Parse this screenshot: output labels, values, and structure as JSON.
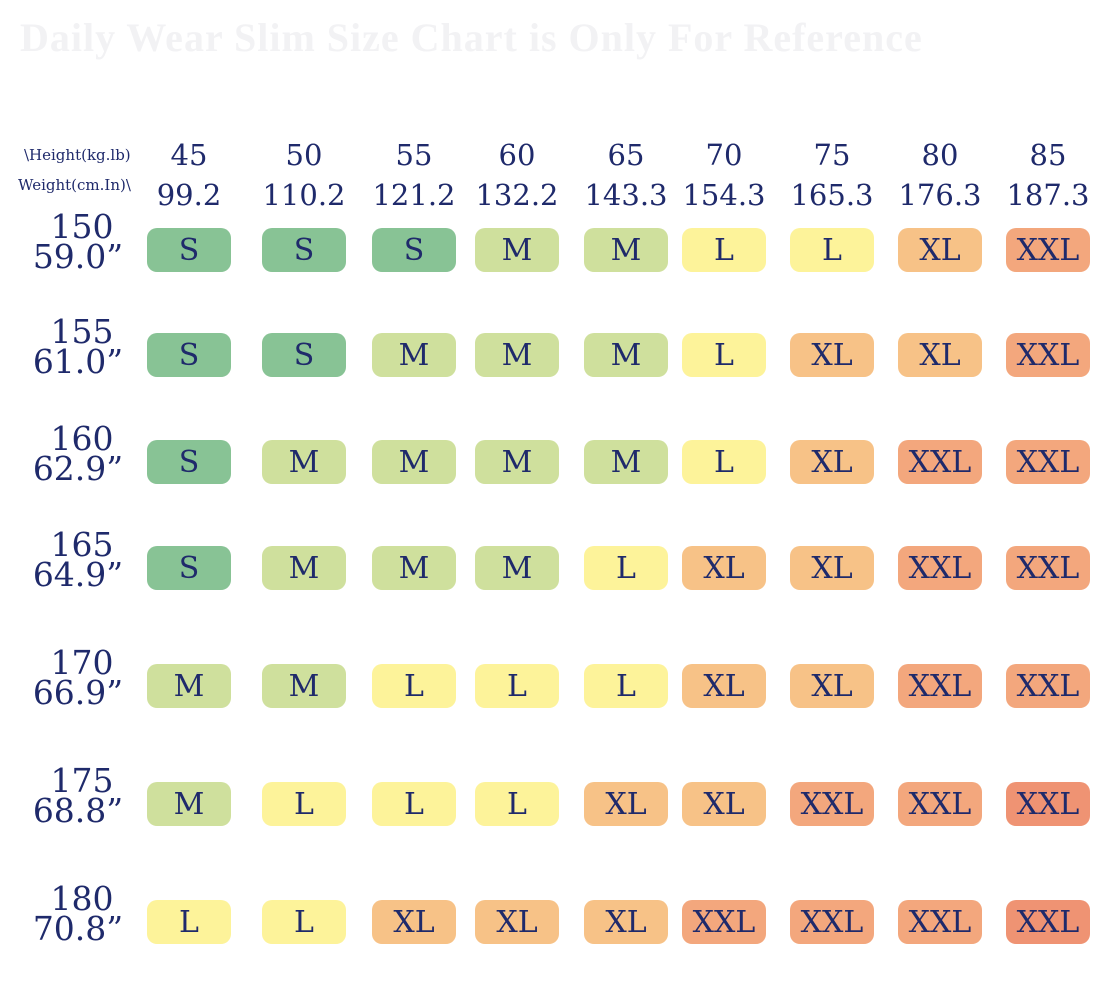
{
  "faint_title": "Daily Wear Slim Size Chart is Only For Reference",
  "corner": {
    "height_label": "\\Height(kg.lb)",
    "weight_label": "Weight(cm.In)\\"
  },
  "columns": [
    {
      "kg": "45",
      "lb": "99.2"
    },
    {
      "kg": "50",
      "lb": "110.2"
    },
    {
      "kg": "55",
      "lb": "121.2"
    },
    {
      "kg": "60",
      "lb": "132.2"
    },
    {
      "kg": "65",
      "lb": "143.3"
    },
    {
      "kg": "70",
      "lb": "154.3"
    },
    {
      "kg": "75",
      "lb": "165.3"
    },
    {
      "kg": "80",
      "lb": "176.3"
    },
    {
      "kg": "85",
      "lb": "187.3"
    }
  ],
  "rows": [
    {
      "cm": "150",
      "in": "59.0”",
      "sizes": [
        "S",
        "S",
        "S",
        "M",
        "M",
        "L",
        "L",
        "XL",
        "XXL"
      ]
    },
    {
      "cm": "155",
      "in": "61.0”",
      "sizes": [
        "S",
        "S",
        "M",
        "M",
        "M",
        "L",
        "XL",
        "XL",
        "XXL"
      ]
    },
    {
      "cm": "160",
      "in": "62.9”",
      "sizes": [
        "S",
        "M",
        "M",
        "M",
        "M",
        "L",
        "XL",
        "XXL",
        "XXL"
      ]
    },
    {
      "cm": "165",
      "in": "64.9”",
      "sizes": [
        "S",
        "M",
        "M",
        "M",
        "L",
        "XL",
        "XL",
        "XXL",
        "XXL"
      ]
    },
    {
      "cm": "170",
      "in": "66.9”",
      "sizes": [
        "M",
        "M",
        "L",
        "L",
        "L",
        "XL",
        "XL",
        "XXL",
        "XXL"
      ]
    },
    {
      "cm": "175",
      "in": "68.8”",
      "sizes": [
        "M",
        "L",
        "L",
        "L",
        "XL",
        "XL",
        "XXL",
        "XXL",
        "XXL"
      ]
    },
    {
      "cm": "180",
      "in": "70.8”",
      "sizes": [
        "L",
        "L",
        "XL",
        "XL",
        "XL",
        "XXL",
        "XXL",
        "XXL",
        "XXL"
      ]
    }
  ],
  "size_colors": {
    "S": "#88c395",
    "M": "#cfe09d",
    "L": "#fdf39a",
    "XL": "#f7c287",
    "XXL": "#f3a77d"
  }
}
